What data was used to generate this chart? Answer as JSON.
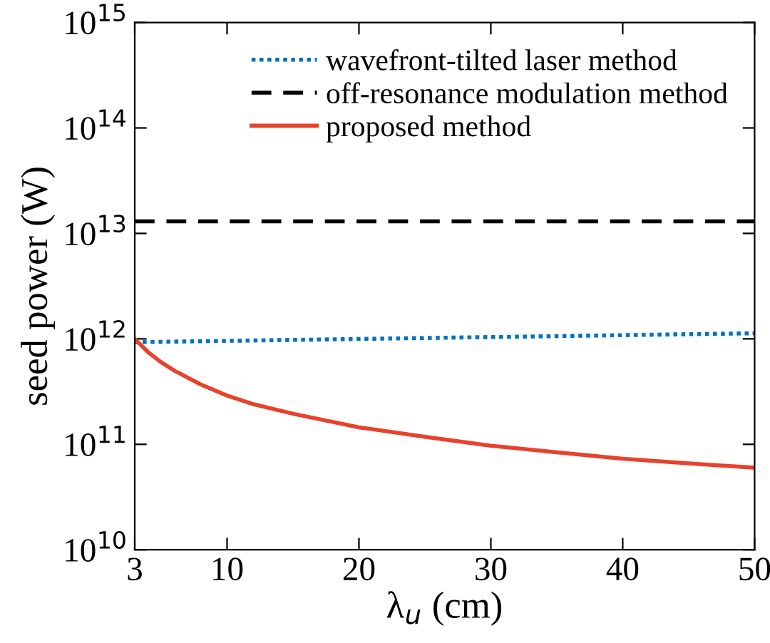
{
  "chart_data": {
    "type": "line",
    "xlabel": "λ$_{u}$ (cm)",
    "ylabel": "seed power (W)",
    "log": "y",
    "xlim": [
      3,
      50
    ],
    "xticks": [
      3,
      10,
      20,
      30,
      40,
      50
    ],
    "ylim": [
      10000000000.0,
      1000000000000000.0
    ],
    "yticks": [
      {
        "value": 10000000000.0,
        "label": "10$^{10}$"
      },
      {
        "value": 100000000000.0,
        "label": "10$^{11}$"
      },
      {
        "value": 1000000000000.0,
        "label": "10$^{12}$"
      },
      {
        "value": 10000000000000.0,
        "label": "10$^{13}$"
      },
      {
        "value": 100000000000000.0,
        "label": "10$^{14}$"
      },
      {
        "value": 1000000000000000.0,
        "label": "10$^{15}$"
      }
    ],
    "legend": "top right",
    "grid": false,
    "series": [
      {
        "name": "wavefront-tilted laser method",
        "color": "#0072bd",
        "line_style": "dotted",
        "x": [
          3,
          50
        ],
        "values": [
          930000000000.0,
          1130000000000.0
        ]
      },
      {
        "name": "off-resonance modulation method",
        "color": "#000000",
        "line_style": "dashed",
        "x": [
          3,
          50
        ],
        "values": [
          13000000000000.0,
          13000000000000.0
        ]
      },
      {
        "name": "proposed method",
        "color": "#e8412c",
        "line_style": "solid",
        "x": [
          3,
          4,
          5,
          6,
          8,
          10,
          12,
          15,
          20,
          25,
          30,
          35,
          40,
          45,
          50
        ],
        "values": [
          1000000000000.0,
          750000000000.0,
          600000000000.0,
          500000000000.0,
          370000000000.0,
          290000000000.0,
          240000000000.0,
          195000000000.0,
          145000000000.0,
          118000000000.0,
          97000000000.0,
          84000000000.0,
          73000000000.0,
          66000000000.0,
          60000000000.0
        ]
      }
    ]
  }
}
